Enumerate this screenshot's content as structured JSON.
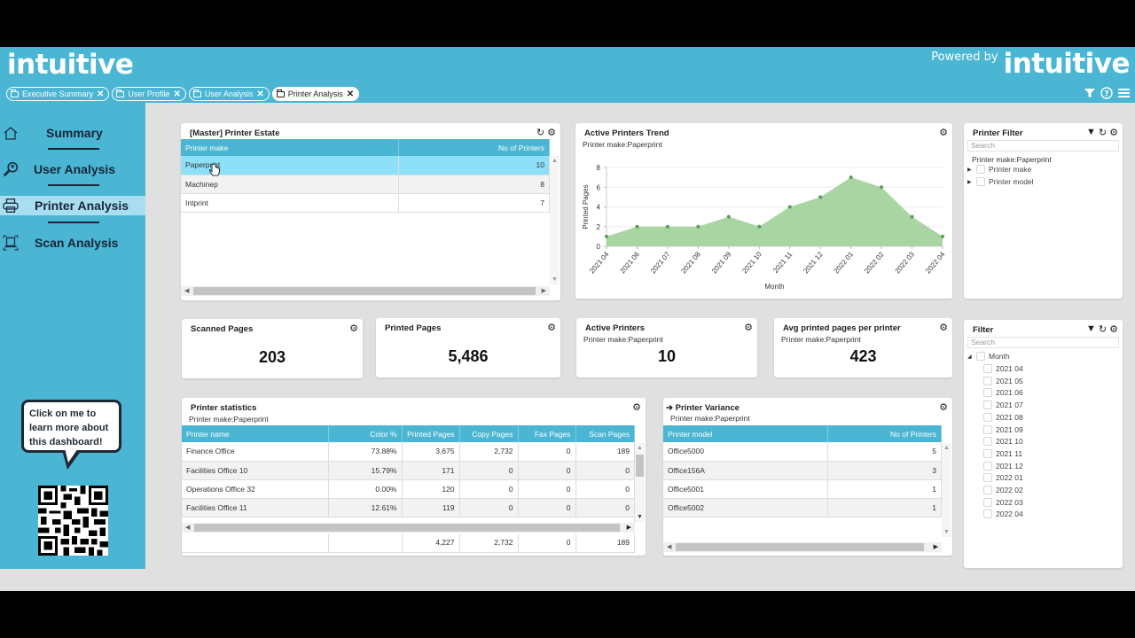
{
  "header": {
    "logo": "intuitive",
    "powered_by": "Powered by",
    "powered_logo": "intuitive",
    "tabs": [
      {
        "label": "Executive Summary",
        "active": false
      },
      {
        "label": "User Profile",
        "active": false
      },
      {
        "label": "User Analysis",
        "active": false
      },
      {
        "label": "Printer Analysis",
        "active": true
      }
    ],
    "icons": [
      "filter-icon",
      "help-icon",
      "menu-icon"
    ]
  },
  "sidebar": {
    "items": [
      {
        "label": "Summary",
        "icon": "home-icon",
        "active": false
      },
      {
        "label": "User Analysis",
        "icon": "user-search-icon",
        "active": false
      },
      {
        "label": "Printer Analysis",
        "icon": "printer-icon",
        "active": true
      },
      {
        "label": "Scan Analysis",
        "icon": "scanner-icon",
        "active": false
      }
    ],
    "help_bubble": "Click on me to learn more about this dashboard!"
  },
  "printer_estate": {
    "title": "[Master] Printer Estate",
    "columns": [
      "Printer make",
      "No of Printers"
    ],
    "rows": [
      {
        "make": "Paperprint",
        "count": "10",
        "selected": true
      },
      {
        "make": "Machinep",
        "count": "8",
        "selected": false
      },
      {
        "make": "Intprint",
        "count": "7",
        "selected": false
      }
    ]
  },
  "active_trend": {
    "title": "Active Printers Trend",
    "subtitle": "Printer make:Paperprint"
  },
  "chart_data": {
    "type": "area",
    "title": "Active Printers Trend",
    "subtitle": "Printer make:Paperprint",
    "xlabel": "Month",
    "ylabel": "Printed Pages",
    "categories": [
      "2021 04",
      "2021 06",
      "2021 07",
      "2021 08",
      "2021 09",
      "2021 10",
      "2021 11",
      "2021 12",
      "2022 01",
      "2022 02",
      "2022 03",
      "2022 04"
    ],
    "values": [
      1,
      2,
      2,
      2,
      3,
      2,
      4,
      5,
      7,
      6,
      3,
      1
    ],
    "ylim": [
      0,
      8
    ],
    "yticks": [
      0,
      2,
      4,
      6,
      8
    ],
    "grid": true,
    "color": "#a8d5a2"
  },
  "printer_filter": {
    "title": "Printer Filter",
    "search_placeholder": "Search",
    "active_filter": "Printer make:Paperprint",
    "items": [
      "Printer make",
      "Printer model"
    ]
  },
  "kpis": [
    {
      "title": "Scanned Pages",
      "subtitle": "",
      "value": "203"
    },
    {
      "title": "Printed Pages",
      "subtitle": "",
      "value": "5,486"
    },
    {
      "title": "Active Printers",
      "subtitle": "Printer make:Paperprint",
      "value": "10"
    },
    {
      "title": "Avg printed pages per printer",
      "subtitle": "Printer make:Paperprint",
      "value": "423"
    }
  ],
  "printer_stats": {
    "title": "Printer statistics",
    "subtitle": "Printer make:Paperprint",
    "columns": [
      "Printer name",
      "Color %",
      "Printed Pages",
      "Copy Pages",
      "Fax Pages",
      "Scan Pages"
    ],
    "rows": [
      [
        "Finance Office",
        "73.88%",
        "3,675",
        "2,732",
        "0",
        "189"
      ],
      [
        "Facilities Office 10",
        "15.79%",
        "171",
        "0",
        "0",
        "0"
      ],
      [
        "Operations Office 32",
        "0.00%",
        "120",
        "0",
        "0",
        "0"
      ],
      [
        "Facilities Office 11",
        "12.61%",
        "119",
        "0",
        "0",
        "0"
      ]
    ],
    "totals": [
      "",
      "",
      "4,227",
      "2,732",
      "0",
      "189"
    ]
  },
  "printer_variance": {
    "title": "Printer Variance",
    "subtitle": "Printer make:Paperprint",
    "columns": [
      "Printer model",
      "No of Printers"
    ],
    "rows": [
      [
        "Office5000",
        "5"
      ],
      [
        "Office156A",
        "3"
      ],
      [
        "Office5001",
        "1"
      ],
      [
        "Office5002",
        "1"
      ]
    ]
  },
  "month_filter": {
    "title": "Filter",
    "search_placeholder": "Search",
    "root": "Month",
    "months": [
      "2021 04",
      "2021 05",
      "2021 06",
      "2021 07",
      "2021 08",
      "2021 09",
      "2021 10",
      "2021 11",
      "2021 12",
      "2022 01",
      "2022 02",
      "2022 03",
      "2022 04"
    ]
  }
}
